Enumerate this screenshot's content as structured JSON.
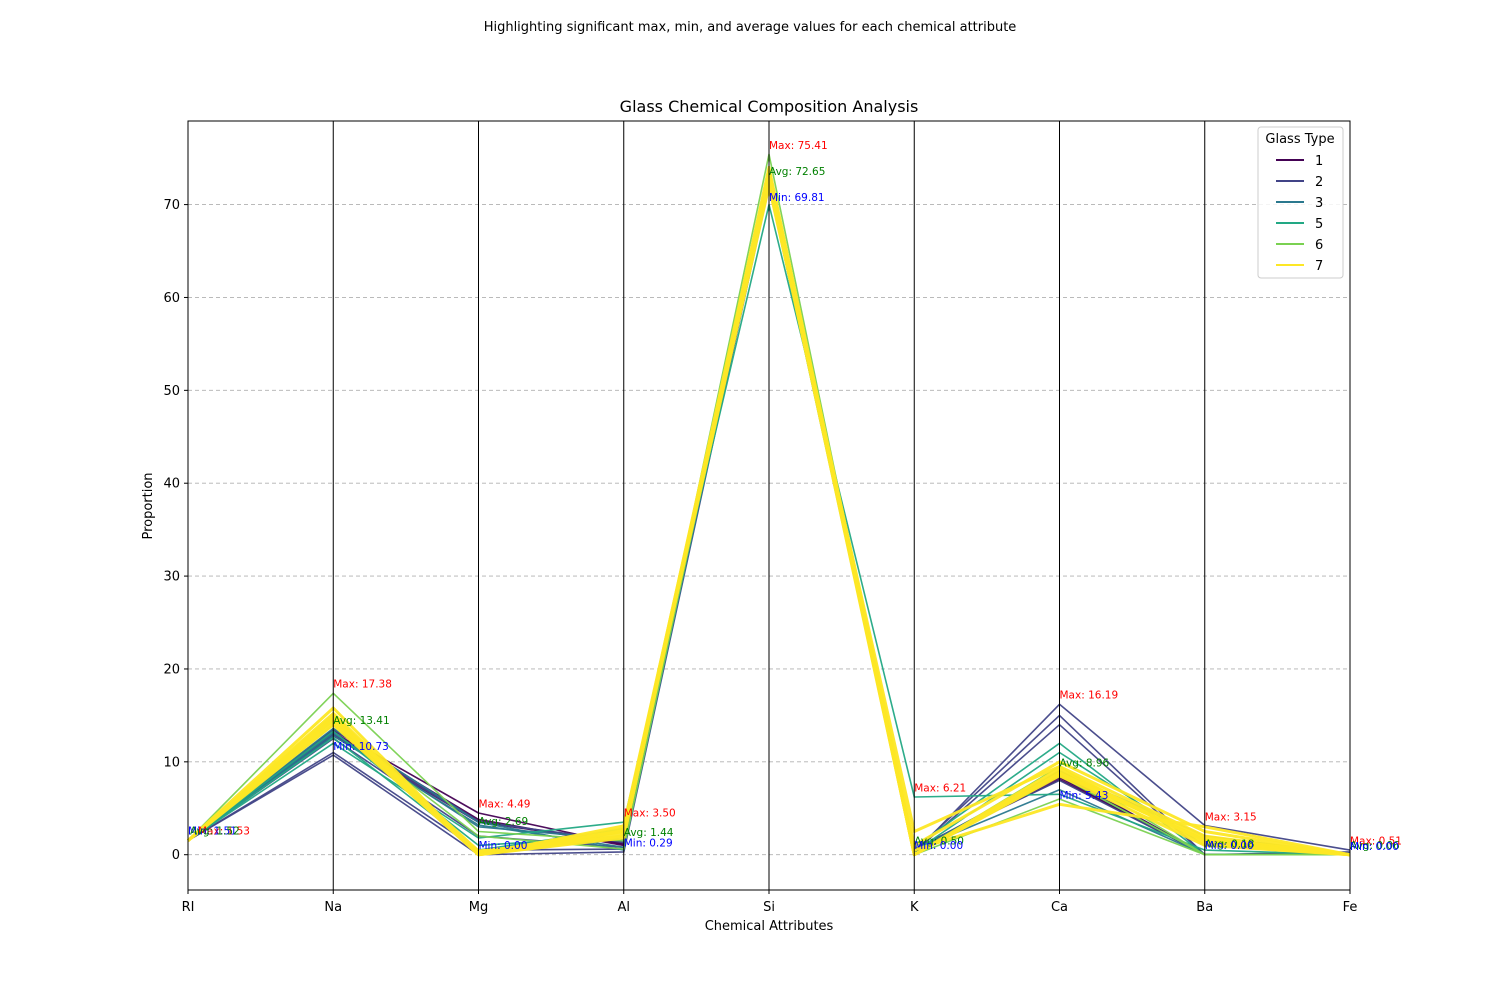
{
  "chart_data": {
    "type": "parallel_coordinates",
    "suptitle": "Highlighting significant max, min, and average values for each chemical attribute",
    "title": "Glass Chemical Composition Analysis",
    "xlabel": "Chemical Attributes",
    "ylabel": "Proportion",
    "categories": [
      "RI",
      "Na",
      "Mg",
      "Al",
      "Si",
      "K",
      "Ca",
      "Ba",
      "Fe"
    ],
    "ylim": [
      -3.8,
      79
    ],
    "yticks": [
      0,
      10,
      20,
      30,
      40,
      50,
      60,
      70
    ],
    "grid": "y-dashed",
    "legend": {
      "title": "Glass Type",
      "position": "top-right",
      "entries": [
        {
          "label": "1",
          "color": "#440154"
        },
        {
          "label": "2",
          "color": "#414487"
        },
        {
          "label": "3",
          "color": "#2a788e"
        },
        {
          "label": "5",
          "color": "#22a884"
        },
        {
          "label": "6",
          "color": "#7ad151"
        },
        {
          "label": "7",
          "color": "#fde725"
        }
      ]
    },
    "series": [
      {
        "name": "1",
        "color": "#440154",
        "lines": [
          [
            1.52,
            13.0,
            3.6,
            1.2,
            72.7,
            0.5,
            8.8,
            0.0,
            0.05
          ],
          [
            1.52,
            13.4,
            4.49,
            1.1,
            72.4,
            0.4,
            8.1,
            0.0,
            0.0
          ],
          [
            1.52,
            12.8,
            3.5,
            1.3,
            73.0,
            0.6,
            8.3,
            0.0,
            0.1
          ],
          [
            1.52,
            13.2,
            3.8,
            1.0,
            72.9,
            0.3,
            8.6,
            0.0,
            0.2
          ]
        ]
      },
      {
        "name": "2",
        "color": "#414487",
        "lines": [
          [
            1.52,
            10.73,
            0.0,
            0.3,
            72.0,
            0.2,
            16.19,
            3.15,
            0.5
          ],
          [
            1.52,
            11.0,
            0.5,
            0.6,
            72.5,
            0.4,
            15.0,
            0.0,
            0.2
          ],
          [
            1.52,
            13.0,
            3.5,
            1.5,
            72.8,
            0.6,
            8.0,
            0.0,
            0.0
          ],
          [
            1.52,
            12.5,
            2.0,
            0.8,
            72.3,
            0.3,
            14.0,
            0.0,
            0.3
          ],
          [
            1.52,
            13.5,
            3.6,
            1.3,
            73.0,
            0.5,
            8.5,
            0.0,
            0.1
          ]
        ]
      },
      {
        "name": "3",
        "color": "#2a788e",
        "lines": [
          [
            1.52,
            13.6,
            3.5,
            0.5,
            72.2,
            0.1,
            8.5,
            0.0,
            0.05
          ],
          [
            1.52,
            12.8,
            3.2,
            0.8,
            72.7,
            0.5,
            7.0,
            0.0,
            0.0
          ],
          [
            1.52,
            13.1,
            3.0,
            1.6,
            73.4,
            0.4,
            9.0,
            2.0,
            0.1
          ]
        ]
      },
      {
        "name": "5",
        "color": "#22a884",
        "lines": [
          [
            1.52,
            12.0,
            1.8,
            3.5,
            70.0,
            6.21,
            6.5,
            0.5,
            0.0
          ],
          [
            1.52,
            12.6,
            0.5,
            2.8,
            72.0,
            0.8,
            12.0,
            0.0,
            0.0
          ],
          [
            1.52,
            13.3,
            1.0,
            2.0,
            72.8,
            0.3,
            11.0,
            1.0,
            0.1
          ]
        ]
      },
      {
        "name": "6",
        "color": "#7ad151",
        "lines": [
          [
            1.52,
            17.38,
            2.5,
            1.5,
            75.41,
            0.0,
            6.0,
            0.0,
            0.0
          ],
          [
            1.52,
            14.0,
            2.0,
            0.6,
            73.0,
            0.0,
            9.5,
            0.0,
            0.0
          ],
          [
            1.52,
            14.5,
            0.0,
            2.1,
            72.0,
            0.0,
            8.5,
            0.0,
            0.0
          ]
        ]
      },
      {
        "name": "7",
        "color": "#fde725",
        "lines": [
          [
            1.52,
            14.2,
            0.0,
            2.0,
            73.0,
            0.0,
            8.7,
            1.6,
            0.0
          ],
          [
            1.52,
            15.8,
            0.0,
            2.5,
            72.5,
            0.0,
            9.3,
            1.2,
            0.0
          ],
          [
            1.52,
            14.5,
            0.3,
            2.3,
            73.2,
            0.0,
            9.0,
            1.8,
            0.0
          ],
          [
            1.52,
            15.2,
            0.0,
            3.1,
            72.9,
            0.5,
            5.43,
            3.0,
            0.0
          ],
          [
            1.52,
            14.8,
            0.2,
            2.8,
            73.5,
            1.0,
            10.0,
            2.5,
            0.0
          ],
          [
            1.52,
            14.0,
            0.0,
            1.8,
            74.0,
            0.0,
            8.8,
            1.5,
            0.0
          ],
          [
            1.52,
            15.0,
            0.0,
            2.6,
            72.0,
            2.5,
            9.5,
            2.0,
            0.0
          ],
          [
            1.52,
            14.6,
            0.4,
            2.0,
            73.6,
            0.0,
            8.5,
            1.0,
            0.0
          ]
        ]
      }
    ],
    "annotations": [
      {
        "axis": "RI",
        "kind": "max",
        "text": "Max: 1.53",
        "y": 2.2,
        "color": "#ff0000",
        "dx": 10
      },
      {
        "axis": "RI",
        "kind": "min",
        "text": "Min: 1.51",
        "y": 2.2,
        "color": "#0000ff",
        "dx": 0
      },
      {
        "axis": "RI",
        "kind": "avg",
        "text": "Avg: 1.52",
        "y": 2.2,
        "color": "#008000",
        "dx": 2
      },
      {
        "axis": "Na",
        "kind": "max",
        "text": "Max: 17.38",
        "y": 18.0,
        "color": "#ff0000",
        "dx": 0
      },
      {
        "axis": "Na",
        "kind": "avg",
        "text": "Avg: 13.41",
        "y": 14.1,
        "color": "#008000",
        "dx": 0
      },
      {
        "axis": "Na",
        "kind": "min",
        "text": "Min: 10.73",
        "y": 11.3,
        "color": "#0000ff",
        "dx": 0
      },
      {
        "axis": "Mg",
        "kind": "max",
        "text": "Max: 4.49",
        "y": 5.1,
        "color": "#ff0000",
        "dx": 0
      },
      {
        "axis": "Mg",
        "kind": "avg",
        "text": "Avg: 2.69",
        "y": 3.2,
        "color": "#008000",
        "dx": 0
      },
      {
        "axis": "Mg",
        "kind": "min",
        "text": "Min: 0.00",
        "y": 0.6,
        "color": "#0000ff",
        "dx": 0
      },
      {
        "axis": "Al",
        "kind": "max",
        "text": "Max: 3.50",
        "y": 4.1,
        "color": "#ff0000",
        "dx": 0
      },
      {
        "axis": "Al",
        "kind": "avg",
        "text": "Avg: 1.44",
        "y": 2.0,
        "color": "#008000",
        "dx": 0
      },
      {
        "axis": "Al",
        "kind": "min",
        "text": "Min: 0.29",
        "y": 0.9,
        "color": "#0000ff",
        "dx": 0
      },
      {
        "axis": "Si",
        "kind": "max",
        "text": "Max: 75.41",
        "y": 76.0,
        "color": "#ff0000",
        "dx": 0
      },
      {
        "axis": "Si",
        "kind": "avg",
        "text": "Avg: 72.65",
        "y": 73.2,
        "color": "#008000",
        "dx": 0
      },
      {
        "axis": "Si",
        "kind": "min",
        "text": "Min: 69.81",
        "y": 70.4,
        "color": "#0000ff",
        "dx": 0
      },
      {
        "axis": "K",
        "kind": "max",
        "text": "Max: 6.21",
        "y": 6.8,
        "color": "#ff0000",
        "dx": 0
      },
      {
        "axis": "K",
        "kind": "avg",
        "text": "Avg: 0.50",
        "y": 1.1,
        "color": "#008000",
        "dx": 0
      },
      {
        "axis": "K",
        "kind": "min",
        "text": "Min: 0.00",
        "y": 0.6,
        "color": "#0000ff",
        "dx": 0
      },
      {
        "axis": "Ca",
        "kind": "max",
        "text": "Max: 16.19",
        "y": 16.8,
        "color": "#ff0000",
        "dx": 0
      },
      {
        "axis": "Ca",
        "kind": "avg",
        "text": "Avg: 8.96",
        "y": 9.5,
        "color": "#008000",
        "dx": 0
      },
      {
        "axis": "Ca",
        "kind": "min",
        "text": "Min: 5.43",
        "y": 6.0,
        "color": "#0000ff",
        "dx": 0
      },
      {
        "axis": "Ba",
        "kind": "max",
        "text": "Max: 3.15",
        "y": 3.7,
        "color": "#ff0000",
        "dx": 0
      },
      {
        "axis": "Ba",
        "kind": "avg",
        "text": "Avg: 0.18",
        "y": 0.8,
        "color": "#008000",
        "dx": 0
      },
      {
        "axis": "Ba",
        "kind": "min",
        "text": "Min: 0.00",
        "y": 0.6,
        "color": "#0000ff",
        "dx": 0
      },
      {
        "axis": "Fe",
        "kind": "max",
        "text": "Max: 0.51",
        "y": 1.1,
        "color": "#ff0000",
        "dx": 0
      },
      {
        "axis": "Fe",
        "kind": "avg",
        "text": "Avg: 0.06",
        "y": 0.6,
        "color": "#008000",
        "dx": 0
      },
      {
        "axis": "Fe",
        "kind": "min",
        "text": "Min: 0.00",
        "y": 0.5,
        "color": "#0000ff",
        "dx": 0
      }
    ]
  }
}
